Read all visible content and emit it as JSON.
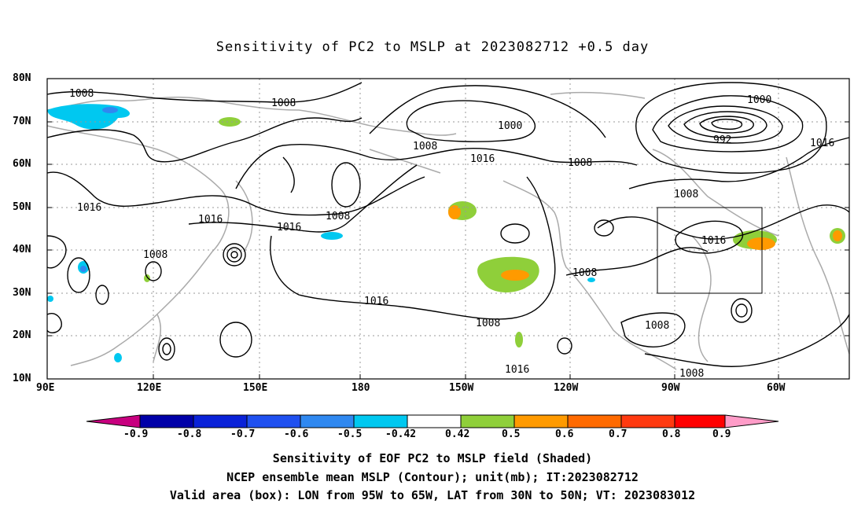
{
  "title": "Sensitivity of PC2 to MSLP at 2023082712 +0.5 day",
  "lat_labels": [
    "80N",
    "70N",
    "60N",
    "50N",
    "40N",
    "30N",
    "20N",
    "10N"
  ],
  "lon_labels": [
    "90E",
    "120E",
    "150E",
    "180",
    "150W",
    "120W",
    "90W",
    "60W"
  ],
  "contour_labels": [
    "1008",
    "1008",
    "1000",
    "1000",
    "992",
    "1016",
    "1008",
    "1008",
    "1016",
    "1008",
    "1016",
    "1016",
    "1008",
    "1016",
    "1016",
    "1016",
    "1008",
    "1008",
    "1008",
    "1008",
    "1016",
    "1008"
  ],
  "colorbar": {
    "labels": [
      "-0.9",
      "-0.8",
      "-0.7",
      "-0.6",
      "-0.5",
      "-0.42",
      "0.42",
      "0.5",
      "0.6",
      "0.7",
      "0.8",
      "0.9"
    ],
    "colors": [
      "#c8007f",
      "#0000a8",
      "#0a22d8",
      "#1f50f0",
      "#2f88f0",
      "#00c8f0",
      "#ffffff",
      "#8fcf3a",
      "#ff9a00",
      "#ff6a00",
      "#ff3a10",
      "#ff0000",
      "#ff9cc8"
    ]
  },
  "captions": {
    "line1": "Sensitivity of EOF PC2 to MSLP field (Shaded)",
    "line2": "NCEP ensemble mean MSLP (Contour); unit(mb); IT:2023082712",
    "line3": "Valid area (box): LON from 95W to 65W, LAT from 30N to 50N; VT: 2023083012"
  }
}
